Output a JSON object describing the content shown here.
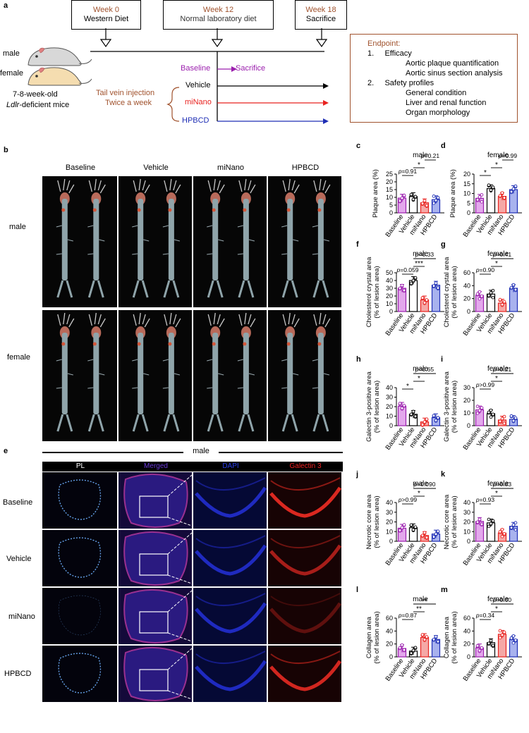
{
  "panel_a": {
    "letter": "a",
    "week0": {
      "week": "Week 0",
      "label": "Western Diet"
    },
    "week12": {
      "week": "Week 12",
      "label": "Normal laboratory diet"
    },
    "week18": {
      "week": "Week 18",
      "label": "Sacrifice"
    },
    "male": "male",
    "female": "female",
    "mice_line1": "7-8-week-old",
    "mice_line2": "Ldlr-deficient mice",
    "mice_line2_italic": "Ldlr",
    "mice_line2_rest": "-deficient mice",
    "injection_line1": "Tail vein injection",
    "injection_line2": "Twice a week",
    "groups": {
      "baseline": "Baseline",
      "sacrifice": "Sacrifice",
      "vehicle": "Vehicle",
      "minano": "miNano",
      "hpbcd": "HPBCD"
    },
    "endpoint": {
      "title": "Endpoint:",
      "efficacy": "1.     Efficacy",
      "efficacy_items": [
        "Aortic plaque quantification",
        "Aortic sinus section analysis"
      ],
      "safety": "2.     Safety profiles",
      "safety_items": [
        "General condition",
        "Liver and renal function",
        "Organ morphology"
      ]
    }
  },
  "panel_b": {
    "letter": "b",
    "columns": [
      "Baseline",
      "Vehicle",
      "miNano",
      "HPBCD"
    ],
    "rows": [
      "male",
      "female"
    ]
  },
  "panel_e": {
    "letter": "e",
    "title": "male",
    "columns": [
      "PL",
      "Merged",
      "DAPI",
      "Galectin 3"
    ],
    "rows": [
      "Baseline",
      "Vehicle",
      "miNano",
      "HPBCD"
    ]
  },
  "colors": {
    "baseline": "#9b1fae",
    "vehicle": "#000000",
    "minano": "#e8221f",
    "hpbcd": "#1f2fb5",
    "week": "#a0522d",
    "endpoint_border": "#a0522d"
  },
  "chart_data": [
    {
      "letter": "c",
      "type": "bar",
      "title": "male",
      "ylabel": "Plaque area (%)",
      "ylim": [
        0,
        25
      ],
      "yticks": [
        0,
        5,
        10,
        15,
        20,
        25
      ],
      "categories": [
        "Baseline",
        "Vehicle",
        "miNano",
        "HPBCD"
      ],
      "values": [
        9.5,
        10.5,
        6.5,
        8.5
      ],
      "annotations": [
        {
          "text": "p=0.91",
          "from": 0,
          "to": 1
        },
        {
          "text": "*",
          "from": 1,
          "to": 2
        },
        {
          "text": "p=0.21",
          "from": 2,
          "to": 3
        }
      ]
    },
    {
      "letter": "d",
      "type": "bar",
      "title": "female",
      "ylabel": "Plaque area (%)",
      "ylim": [
        0,
        20
      ],
      "yticks": [
        0,
        5,
        10,
        15,
        20
      ],
      "categories": [
        "Baseline",
        "Vehicle",
        "miNano",
        "HPBCD"
      ],
      "values": [
        7.5,
        12.5,
        8.5,
        12
      ],
      "annotations": [
        {
          "text": "*",
          "from": 0,
          "to": 1
        },
        {
          "text": "*",
          "from": 1,
          "to": 2
        },
        {
          "text": "p=0.99",
          "from": 2,
          "to": 3
        }
      ]
    },
    {
      "letter": "f",
      "type": "bar",
      "title": "male",
      "ylabel": "Cholesterol crystal area",
      "ylabel2": "(% of lesion area)",
      "ylim": [
        0,
        50
      ],
      "yticks": [
        0,
        10,
        20,
        30,
        40,
        50
      ],
      "categories": [
        "Baseline",
        "Vehicle",
        "miNano",
        "HPBCD"
      ],
      "values": [
        30,
        40,
        15,
        34
      ],
      "annotations": [
        {
          "text": "p=0.059",
          "from": 0,
          "to": 1
        },
        {
          "text": "***",
          "from": 1,
          "to": 2
        },
        {
          "text": "p=0.33",
          "from": 1,
          "to": 3
        }
      ]
    },
    {
      "letter": "g",
      "type": "bar",
      "title": "female",
      "ylabel": "Cholesterol crystal area",
      "ylabel2": "(% of lesion area)",
      "ylim": [
        0,
        60
      ],
      "yticks": [
        0,
        20,
        40,
        60
      ],
      "categories": [
        "Baseline",
        "Vehicle",
        "miNano",
        "HPBCD"
      ],
      "values": [
        25,
        27,
        13,
        36
      ],
      "annotations": [
        {
          "text": "p=0.90",
          "from": 0,
          "to": 1
        },
        {
          "text": "*",
          "from": 1,
          "to": 2
        },
        {
          "text": "p=0.41",
          "from": 1,
          "to": 3
        }
      ]
    },
    {
      "letter": "h",
      "type": "bar",
      "title": "male",
      "ylabel": "Galectin 3-positive area",
      "ylabel2": "(% of lesion area)",
      "ylim": [
        0,
        40
      ],
      "yticks": [
        0,
        10,
        20,
        30,
        40
      ],
      "categories": [
        "Baseline",
        "Vehicle",
        "miNano",
        "HPBCD"
      ],
      "values": [
        20.5,
        12,
        4,
        8.5
      ],
      "annotations": [
        {
          "text": "*",
          "from": 0,
          "to": 1
        },
        {
          "text": "*",
          "from": 1,
          "to": 2
        },
        {
          "text": "p=0.65",
          "from": 1,
          "to": 3
        }
      ]
    },
    {
      "letter": "i",
      "type": "bar",
      "title": "female",
      "ylabel": "Galectin 3-positive area",
      "ylabel2": "(% of lesion area)",
      "ylim": [
        0,
        30
      ],
      "yticks": [
        0,
        10,
        20,
        30
      ],
      "categories": [
        "Baseline",
        "Vehicle",
        "miNano",
        "HPBCD"
      ],
      "values": [
        12.5,
        9.5,
        4.5,
        5
      ],
      "annotations": [
        {
          "text": "p>0.99",
          "from": 0,
          "to": 1
        },
        {
          "text": "*",
          "from": 1,
          "to": 2
        },
        {
          "text": "p=0.21",
          "from": 1,
          "to": 3
        }
      ]
    },
    {
      "letter": "j",
      "type": "bar",
      "title": "male",
      "ylabel": "Necrotic core area",
      "ylabel2": "(% of lesion area)",
      "ylim": [
        0,
        40
      ],
      "yticks": [
        0,
        10,
        20,
        30,
        40
      ],
      "categories": [
        "Baseline",
        "Vehicle",
        "miNano",
        "HPBCD"
      ],
      "values": [
        13.5,
        14,
        6,
        7.5
      ],
      "annotations": [
        {
          "text": "p>0.99",
          "from": 0,
          "to": 1
        },
        {
          "text": "*",
          "from": 1,
          "to": 2
        },
        {
          "text": "p=0.090",
          "from": 1,
          "to": 3
        }
      ]
    },
    {
      "letter": "k",
      "type": "bar",
      "title": "female",
      "ylabel": "Necrotic core area",
      "ylabel2": "(% of lesion area)",
      "ylim": [
        0,
        40
      ],
      "yticks": [
        0,
        10,
        20,
        30,
        40
      ],
      "categories": [
        "Baseline",
        "Vehicle",
        "miNano",
        "HPBCD"
      ],
      "values": [
        20.5,
        19,
        8.5,
        15.5
      ],
      "annotations": [
        {
          "text": "p=0.93",
          "from": 0,
          "to": 1
        },
        {
          "text": "*",
          "from": 1,
          "to": 2
        },
        {
          "text": "p=0.83",
          "from": 1,
          "to": 3
        }
      ]
    },
    {
      "letter": "l",
      "type": "bar",
      "title": "male",
      "ylabel": "Collagen area",
      "ylabel2": "(% of lesion area)",
      "ylim": [
        0,
        60
      ],
      "yticks": [
        0,
        20,
        40,
        60
      ],
      "categories": [
        "Baseline",
        "Vehicle",
        "miNano",
        "HPBCD"
      ],
      "values": [
        13,
        9,
        30,
        27
      ],
      "annotations": [
        {
          "text": "p=0.87",
          "from": 0,
          "to": 1
        },
        {
          "text": "**",
          "from": 1,
          "to": 2
        },
        {
          "text": "**",
          "from": 1,
          "to": 3
        }
      ]
    },
    {
      "letter": "m",
      "type": "bar",
      "title": "female",
      "ylabel": "Collagen area",
      "ylabel2": "(% of lesion area)",
      "ylim": [
        0,
        60
      ],
      "yticks": [
        0,
        20,
        40,
        60
      ],
      "categories": [
        "Baseline",
        "Vehicle",
        "miNano",
        "HPBCD"
      ],
      "values": [
        14,
        22,
        35,
        27
      ],
      "annotations": [
        {
          "text": "p=0.34",
          "from": 0,
          "to": 1
        },
        {
          "text": "*",
          "from": 1,
          "to": 2
        },
        {
          "text": "p=0.60",
          "from": 1,
          "to": 3
        }
      ]
    }
  ]
}
